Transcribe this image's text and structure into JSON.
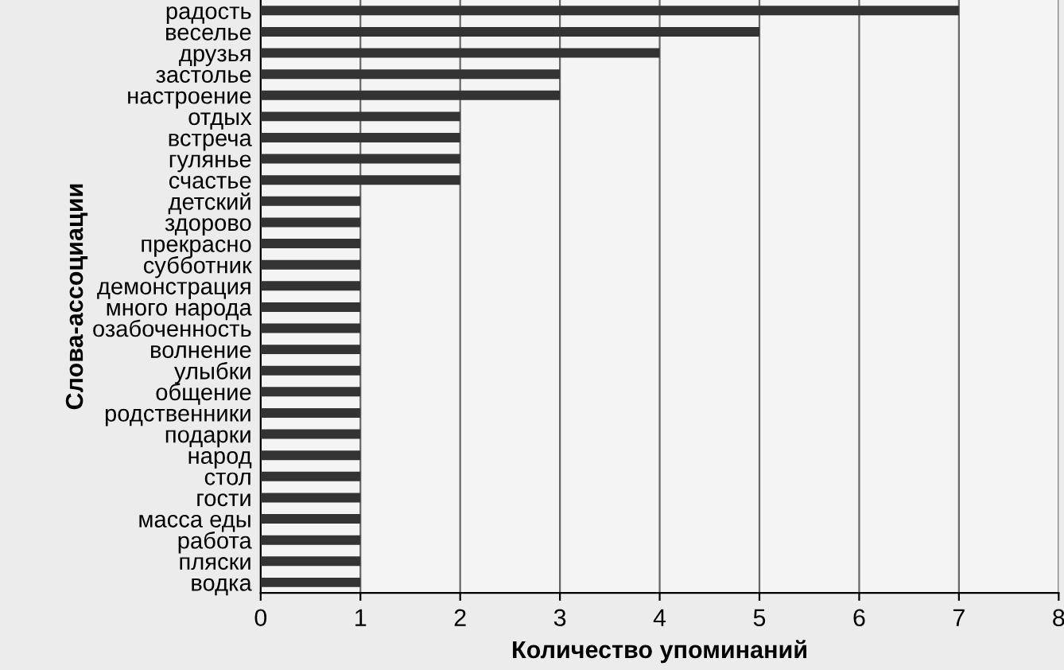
{
  "chart_data": {
    "type": "bar",
    "orientation": "horizontal",
    "xlabel": "Количество упоминаний",
    "ylabel": "Слова-ассоциации",
    "categories": [
      "радость",
      "веселье",
      "друзья",
      "застолье",
      "настроение",
      "отдых",
      "встреча",
      "гулянье",
      "счастье",
      "детский",
      "здорово",
      "прекрасно",
      "субботник",
      "демонстрация",
      "много народа",
      "озабоченность",
      "волнение",
      "улыбки",
      "общение",
      "родственники",
      "подарки",
      "народ",
      "стол",
      "гости",
      "масса еды",
      "работа",
      "пляски",
      "водка"
    ],
    "values": [
      7,
      5,
      4,
      3,
      3,
      2,
      2,
      2,
      2,
      1,
      1,
      1,
      1,
      1,
      1,
      1,
      1,
      1,
      1,
      1,
      1,
      1,
      1,
      1,
      1,
      1,
      1,
      1
    ],
    "color": "#333333",
    "xlim": [
      0,
      8
    ],
    "xticks": [
      0,
      1,
      2,
      3,
      4,
      5,
      6,
      7,
      8
    ],
    "grid": "x"
  }
}
